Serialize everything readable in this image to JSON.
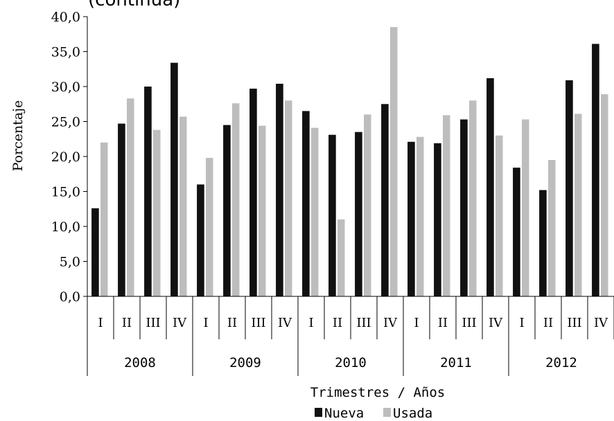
{
  "chart_data": {
    "type": "bar",
    "title": "(continúa)",
    "ylabel": "Porcentaje",
    "xlabel": "Trimestres / Años",
    "ylim": [
      0,
      40
    ],
    "yticks": [
      "0,0",
      "5,0",
      "10,0",
      "15,0",
      "20,0",
      "25,0",
      "30,0",
      "35,0",
      "40,0"
    ],
    "years": [
      "2008",
      "2009",
      "2010",
      "2011",
      "2012"
    ],
    "quarters": [
      "I",
      "II",
      "III",
      "IV"
    ],
    "categories": [
      "2008 I",
      "2008 II",
      "2008 III",
      "2008 IV",
      "2009 I",
      "2009 II",
      "2009 III",
      "2009 IV",
      "2010 I",
      "2010 II",
      "2010 III",
      "2010 IV",
      "2011 I",
      "2011 II",
      "2011 III",
      "2011 IV",
      "2012 I",
      "2012 II",
      "2012 III",
      "2012 IV"
    ],
    "series": [
      {
        "name": "Nueva",
        "color": "#111111",
        "values": [
          12.6,
          24.7,
          30.0,
          33.4,
          16.0,
          24.5,
          29.7,
          30.4,
          26.5,
          23.1,
          23.5,
          27.5,
          22.1,
          21.9,
          25.3,
          31.2,
          18.4,
          15.2,
          30.9,
          36.1
        ]
      },
      {
        "name": "Usada",
        "color": "#bdbdbd",
        "values": [
          22.0,
          28.3,
          23.8,
          25.7,
          19.8,
          27.6,
          24.4,
          28.0,
          24.1,
          11.0,
          26.0,
          38.5,
          22.8,
          25.9,
          28.0,
          23.0,
          25.3,
          19.5,
          26.1,
          28.9
        ]
      }
    ],
    "grid": false,
    "legend_position": "bottom"
  }
}
